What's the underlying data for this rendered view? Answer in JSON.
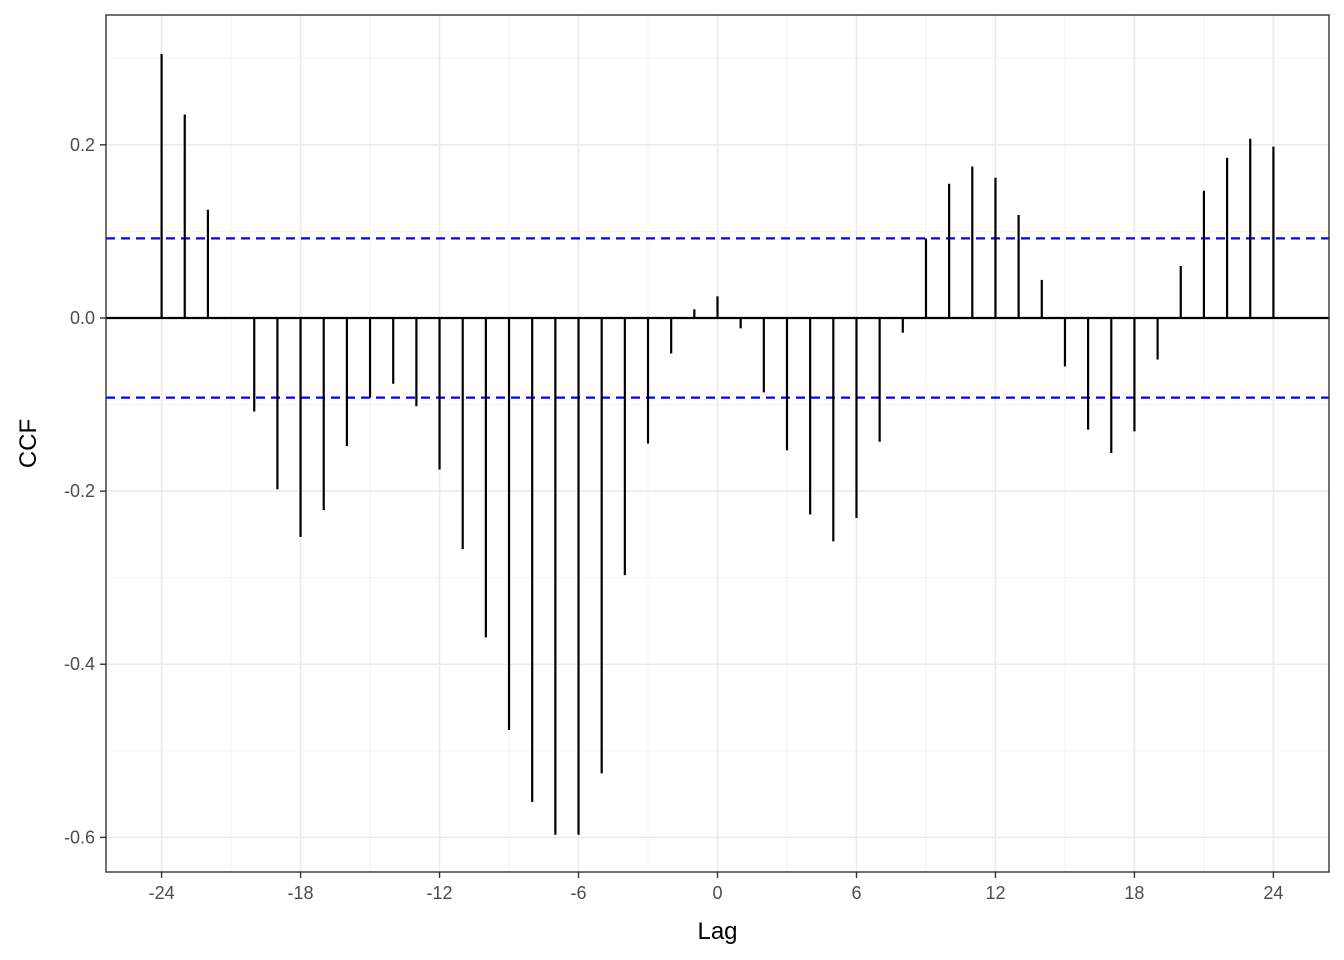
{
  "chart_data": {
    "type": "bar",
    "subtype": "ccf-stem",
    "xlabel": "Lag",
    "ylabel": "CCF",
    "x_ticks": [
      -24,
      -18,
      -12,
      -6,
      0,
      6,
      12,
      18,
      24
    ],
    "x_tick_labels": [
      "-24",
      "-18",
      "-12",
      "-6",
      "0",
      "6",
      "12",
      "18",
      "24"
    ],
    "y_ticks": [
      -0.6,
      -0.4,
      -0.2,
      0.0,
      0.2
    ],
    "y_tick_labels": [
      "-0.6",
      "-0.4",
      "-0.2",
      "0.0",
      "0.2"
    ],
    "xlim": [
      -26.4,
      26.4
    ],
    "ylim": [
      -0.64,
      0.35
    ],
    "grid": true,
    "confidence_bound": 0.092,
    "confidence_color": "#0000ff",
    "stem_color": "#000000",
    "lags": [
      -24,
      -23,
      -22,
      -21,
      -20,
      -19,
      -18,
      -17,
      -16,
      -15,
      -14,
      -13,
      -12,
      -11,
      -10,
      -9,
      -8,
      -7,
      -6,
      -5,
      -4,
      -3,
      -2,
      -1,
      0,
      1,
      2,
      3,
      4,
      5,
      6,
      7,
      8,
      9,
      10,
      11,
      12,
      13,
      14,
      15,
      16,
      17,
      18,
      19,
      20,
      21,
      22,
      23,
      24
    ],
    "values": [
      0.305,
      0.235,
      0.125,
      0.0,
      -0.108,
      -0.198,
      -0.253,
      -0.222,
      -0.148,
      -0.092,
      -0.076,
      -0.102,
      -0.175,
      -0.267,
      -0.369,
      -0.476,
      -0.559,
      -0.597,
      -0.597,
      -0.526,
      -0.297,
      -0.145,
      -0.041,
      0.01,
      0.025,
      -0.012,
      -0.086,
      -0.153,
      -0.227,
      -0.258,
      -0.231,
      -0.143,
      -0.017,
      0.092,
      0.155,
      0.175,
      0.162,
      0.119,
      0.044,
      -0.056,
      -0.129,
      -0.156,
      -0.131,
      -0.048,
      0.06,
      0.147,
      0.185,
      0.207,
      0.198
    ]
  }
}
